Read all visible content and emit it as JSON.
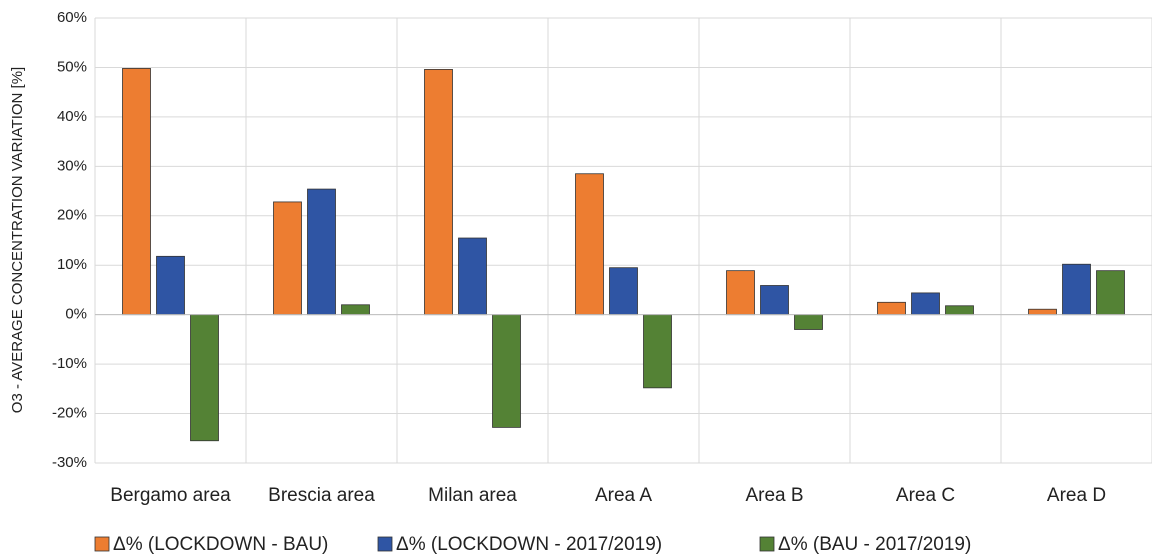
{
  "chart_data": {
    "type": "bar",
    "y_label": "O3 - AVERAGE CONCENTRATION VARIATION [%]",
    "categories": [
      "Bergamo area",
      "Brescia area",
      "Milan area",
      "Area A",
      "Area B",
      "Area C",
      "Area D"
    ],
    "series": [
      {
        "name": "Δ% (LOCKDOWN - BAU)",
        "color": "#ed7d31",
        "values": [
          49.8,
          22.8,
          49.6,
          28.5,
          8.9,
          2.5,
          1.1
        ]
      },
      {
        "name": "Δ% (LOCKDOWN - 2017/2019)",
        "color": "#2f55a4",
        "values": [
          11.8,
          25.4,
          15.5,
          9.5,
          5.9,
          4.4,
          10.2
        ]
      },
      {
        "name": "Δ% (BAU - 2017/2019)",
        "color": "#548235",
        "values": [
          -25.5,
          2.0,
          -22.8,
          -14.8,
          -3.0,
          1.8,
          8.9
        ]
      }
    ],
    "ylim": [
      -30,
      60
    ],
    "yticks": [
      {
        "value": -30,
        "label": "-30%"
      },
      {
        "value": -20,
        "label": "-20%"
      },
      {
        "value": -10,
        "label": "-10%"
      },
      {
        "value": 0,
        "label": "0%"
      },
      {
        "value": 10,
        "label": "10%"
      },
      {
        "value": 20,
        "label": "20%"
      },
      {
        "value": 30,
        "label": "30%"
      },
      {
        "value": 40,
        "label": "40%"
      },
      {
        "value": 50,
        "label": "50%"
      },
      {
        "value": 60,
        "label": "60%"
      }
    ],
    "grid": true,
    "legend": "bottom"
  }
}
